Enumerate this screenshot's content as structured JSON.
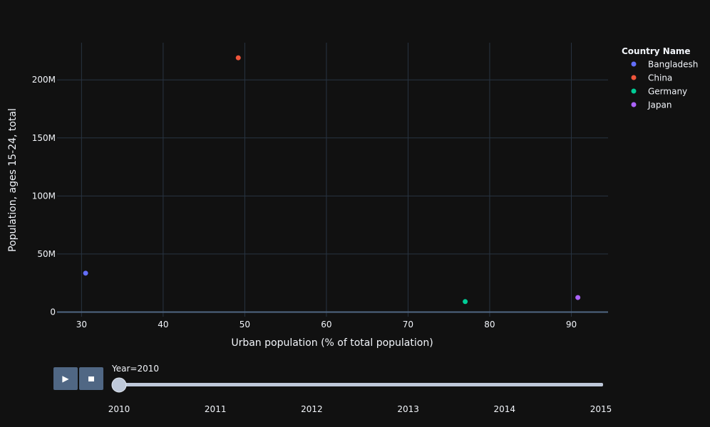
{
  "chart_data": {
    "type": "scatter",
    "title": "",
    "xlabel": "Urban population (% of total population)",
    "ylabel": "Population, ages 15-24, total",
    "xlim": [
      27,
      94.5
    ],
    "ylim": [
      -4000000,
      232000000
    ],
    "xticks": [
      30,
      40,
      50,
      60,
      70,
      80,
      90
    ],
    "yticks": [
      {
        "value": 0,
        "label": "0"
      },
      {
        "value": 50000000,
        "label": "50M"
      },
      {
        "value": 100000000,
        "label": "100M"
      },
      {
        "value": 150000000,
        "label": "150M"
      },
      {
        "value": 200000000,
        "label": "200M"
      }
    ],
    "grid": true,
    "legend": {
      "title": "Country Name",
      "placement": "top-right"
    },
    "series": [
      {
        "name": "Bangladesh",
        "color": "#636efa",
        "points": [
          {
            "x": 30.5,
            "y": 33500000
          }
        ]
      },
      {
        "name": "China",
        "color": "#ef553b",
        "points": [
          {
            "x": 49.2,
            "y": 219000000
          }
        ]
      },
      {
        "name": "Germany",
        "color": "#00cc96",
        "points": [
          {
            "x": 77.0,
            "y": 9000000
          }
        ]
      },
      {
        "name": "Japan",
        "color": "#ab63fa",
        "points": [
          {
            "x": 90.8,
            "y": 12500000
          }
        ]
      }
    ]
  },
  "slider": {
    "current_label": "Year=2010",
    "current_value": 2010,
    "steps": [
      "2010",
      "2011",
      "2012",
      "2013",
      "2014",
      "2015"
    ]
  },
  "controls": {
    "play_icon": "play-icon",
    "stop_icon": "stop-icon"
  }
}
